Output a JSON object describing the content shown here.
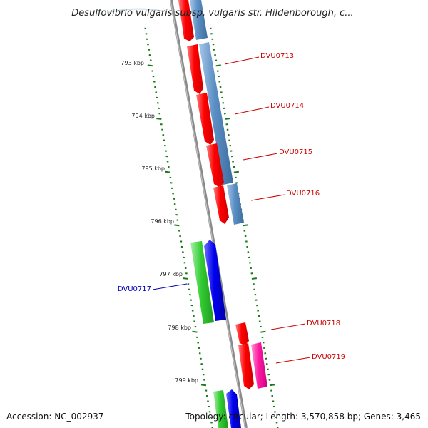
{
  "title": "Desulfovibrio vulgaris subsp. vulgaris str. Hildenborough, c...",
  "accession": "Accession: NC_002937",
  "topology": "Topology: circular; Length: 3,570,858 bp; Genes: 3,465",
  "scale_labels": [
    "793 kbp",
    "794 kbp",
    "795 kbp",
    "796 kbp",
    "797 kbp",
    "798 kbp",
    "799 kbp"
  ],
  "gene_labels": [
    {
      "text": "DVU0713",
      "color": "#cc0000"
    },
    {
      "text": "DVU0714",
      "color": "#cc0000"
    },
    {
      "text": "DVU0715",
      "color": "#cc0000"
    },
    {
      "text": "DVU0716",
      "color": "#cc0000"
    },
    {
      "text": "DVU0717",
      "color": "#0000bb"
    },
    {
      "text": "DVU0718",
      "color": "#cc0000"
    },
    {
      "text": "DVU0719",
      "color": "#cc0000"
    }
  ],
  "colors": {
    "backbone": "#8a8a8a",
    "tick": "#1a7a1a",
    "red": "#ff0000",
    "steelblue": "#5b8fc4",
    "green": "#33cc33",
    "blue": "#0000ee",
    "pink": "#ff1aa0"
  }
}
